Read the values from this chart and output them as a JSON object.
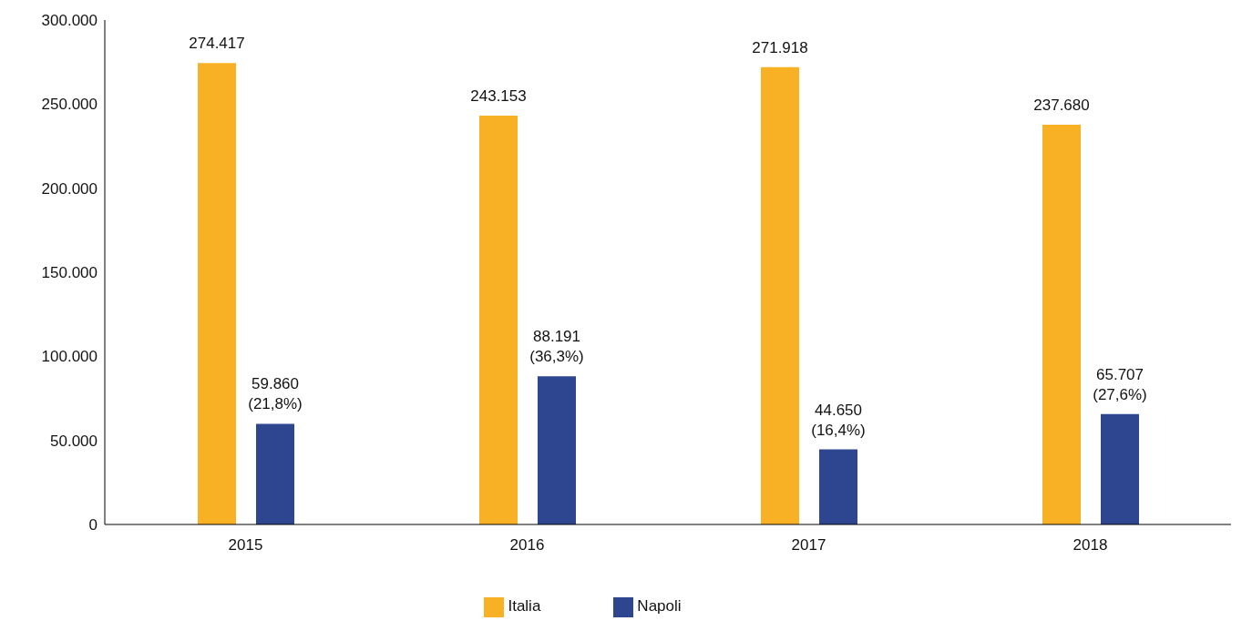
{
  "chart_data": {
    "type": "bar",
    "categories": [
      "2015",
      "2016",
      "2017",
      "2018"
    ],
    "series": [
      {
        "name": "Italia",
        "color": "#f8b024",
        "values": [
          274417,
          243153,
          271918,
          237680
        ],
        "value_labels": [
          "274.417",
          "243.153",
          "271.918",
          "237.680"
        ]
      },
      {
        "name": "Napoli",
        "color": "#2e4690",
        "values": [
          59860,
          88191,
          44650,
          65707
        ],
        "value_labels": [
          "59.860\n(21,8%)",
          "88.191\n(36,3%)",
          "44.650\n(16,4%)",
          "65.707\n(27,6%)"
        ]
      }
    ],
    "ylim": [
      0,
      300000
    ],
    "yticks": [
      0,
      {
        "value": 50000,
        "label": "50.000"
      },
      {
        "value": 100000,
        "label": "100.000"
      },
      {
        "value": 150000,
        "label": "150.000"
      },
      {
        "value": 200000,
        "label": "200.000"
      },
      {
        "value": 250000,
        "label": "250.000"
      },
      {
        "value": 300000,
        "label": "300.000"
      }
    ],
    "grid": false,
    "legend": "bottom"
  }
}
